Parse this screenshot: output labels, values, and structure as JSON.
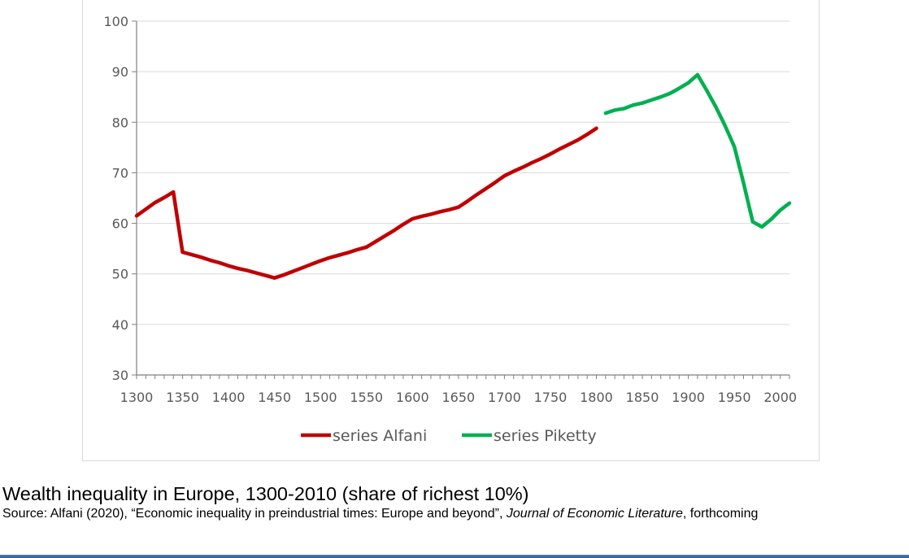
{
  "caption": {
    "title": "Wealth inequality in Europe, 1300-2010 (share of richest 10%)",
    "source_prefix": "Source: Alfani (2020), “Economic inequality in preindustrial times: Europe and beyond”, ",
    "source_journal": "Journal of Economic Literature",
    "source_suffix": ", forthcoming"
  },
  "chart_data": {
    "type": "line",
    "title": "",
    "xlabel": "",
    "ylabel": "",
    "xlim": [
      1300,
      2010
    ],
    "ylim": [
      30,
      100
    ],
    "x_ticks": [
      1300,
      1350,
      1400,
      1450,
      1500,
      1550,
      1600,
      1650,
      1700,
      1750,
      1800,
      1850,
      1900,
      1950,
      2000
    ],
    "y_ticks": [
      30,
      40,
      50,
      60,
      70,
      80,
      90,
      100
    ],
    "grid": "horizontal",
    "legend_position": "bottom",
    "series": [
      {
        "name": "series Alfani",
        "color": "#c00000",
        "x": [
          1300,
          1310,
          1320,
          1330,
          1340,
          1350,
          1360,
          1370,
          1380,
          1390,
          1400,
          1410,
          1420,
          1430,
          1440,
          1450,
          1460,
          1470,
          1480,
          1490,
          1500,
          1510,
          1520,
          1530,
          1540,
          1550,
          1560,
          1570,
          1580,
          1590,
          1600,
          1610,
          1620,
          1630,
          1640,
          1650,
          1660,
          1670,
          1680,
          1690,
          1700,
          1710,
          1720,
          1730,
          1740,
          1750,
          1760,
          1770,
          1780,
          1790,
          1800
        ],
        "values": [
          61.5,
          62.8,
          64.1,
          65.1,
          66.2,
          54.3,
          53.8,
          53.3,
          52.7,
          52.2,
          51.6,
          51.1,
          50.7,
          50.2,
          49.7,
          49.2,
          49.8,
          50.5,
          51.2,
          51.9,
          52.6,
          53.2,
          53.7,
          54.2,
          54.8,
          55.3,
          56.4,
          57.5,
          58.6,
          59.8,
          60.9,
          61.4,
          61.8,
          62.3,
          62.7,
          63.2,
          64.4,
          65.7,
          66.9,
          68.1,
          69.4,
          70.3,
          71.1,
          72.0,
          72.8,
          73.7,
          74.7,
          75.6,
          76.5,
          77.6,
          78.8
        ]
      },
      {
        "name": "series Piketty",
        "color": "#00b050",
        "x": [
          1810,
          1820,
          1830,
          1840,
          1850,
          1860,
          1870,
          1880,
          1890,
          1900,
          1910,
          1920,
          1930,
          1940,
          1950,
          1960,
          1970,
          1980,
          1990,
          2000,
          2010
        ],
        "values": [
          81.8,
          82.4,
          82.7,
          83.4,
          83.8,
          84.4,
          85.0,
          85.7,
          86.7,
          87.8,
          89.4,
          86.3,
          83.0,
          79.3,
          75.2,
          68.0,
          60.3,
          59.3,
          60.8,
          62.6,
          64.0
        ]
      }
    ]
  }
}
